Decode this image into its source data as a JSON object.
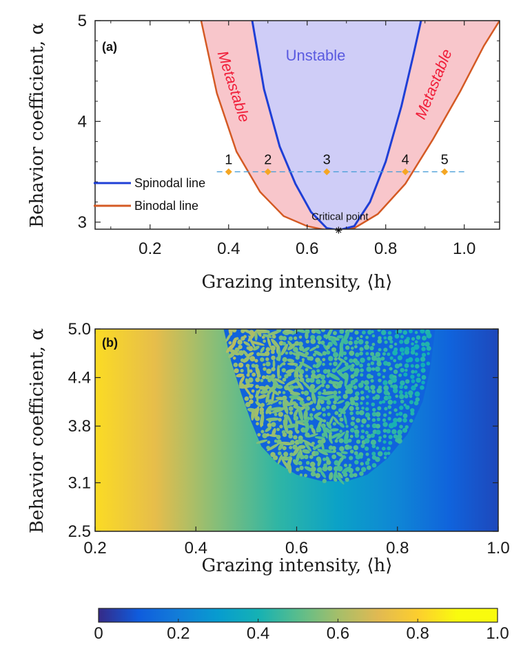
{
  "chart_data": [
    {
      "panel": "(a)",
      "type": "line",
      "xlabel": "Grazing intensity, ⟨h⟩",
      "ylabel": "Behavior coefficient, α",
      "xlim": [
        0.06,
        1.09
      ],
      "ylim": [
        2.93,
        5.0
      ],
      "xticks": [
        0.2,
        0.4,
        0.6,
        0.8,
        1.0
      ],
      "xtick_labels": [
        "0.2",
        "0.4",
        "0.6",
        "0.8",
        "1.0"
      ],
      "yticks": [
        3,
        4,
        5
      ],
      "ytick_labels": [
        "3",
        "4",
        "5"
      ],
      "critical_point": {
        "x": 0.68,
        "y": 2.92,
        "label": "Critical point"
      },
      "series": [
        {
          "name": "Spinodal line",
          "color": "#1f3fd6",
          "x": [
            0.46,
            0.49,
            0.53,
            0.57,
            0.61,
            0.65,
            0.68,
            0.72,
            0.76,
            0.8,
            0.84,
            0.87,
            0.89
          ],
          "y": [
            5.0,
            4.32,
            3.75,
            3.38,
            3.1,
            2.94,
            2.92,
            2.96,
            3.2,
            3.6,
            4.15,
            4.65,
            5.0
          ]
        },
        {
          "name": "Binodal line",
          "color": "#d45a24",
          "x": [
            0.33,
            0.37,
            0.42,
            0.48,
            0.54,
            0.6,
            0.65,
            0.68,
            0.72,
            0.78,
            0.85,
            0.92,
            0.99,
            1.05,
            1.09
          ],
          "y": [
            5.0,
            4.28,
            3.7,
            3.3,
            3.06,
            2.96,
            2.92,
            2.92,
            2.94,
            3.08,
            3.38,
            3.82,
            4.3,
            4.75,
            5.0
          ]
        }
      ],
      "sample_points": {
        "alpha": 3.5,
        "x": [
          0.4,
          0.5,
          0.65,
          0.85,
          0.95
        ],
        "labels": [
          "1",
          "2",
          "3",
          "4",
          "5"
        ],
        "color": "#f5a623"
      },
      "regions": {
        "unstable_label": "Unstable",
        "metastable_label": "Metastable",
        "unstable_color": "#cfcdf7",
        "metastable_color": "#f8c6cb",
        "unstable_text_color": "#5a5ae0",
        "metastable_text_color": "#f01f3a"
      },
      "legend": "bottom-left",
      "grid": false
    },
    {
      "panel": "(b)",
      "type": "heatmap",
      "xlabel": "Grazing intensity, ⟨h⟩",
      "ylabel": "Behavior coefficient, α",
      "xlim": [
        0.2,
        1.0
      ],
      "ylim": [
        2.5,
        5.0
      ],
      "xticks": [
        0.2,
        0.4,
        0.6,
        0.8,
        1.0
      ],
      "xtick_labels": [
        "0.2",
        "0.4",
        "0.6",
        "0.8",
        "1.0"
      ],
      "yticks": [
        2.5,
        3.1,
        3.8,
        4.4,
        5.0
      ],
      "ytick_labels": [
        "2.5",
        "3.1",
        "3.8",
        "4.4",
        "5.0"
      ],
      "colorbar": {
        "range": [
          0,
          1
        ],
        "ticks": [
          0,
          0.2,
          0.4,
          0.6,
          0.8,
          1.0
        ],
        "tick_labels": [
          "0",
          "0.2",
          "0.4",
          "0.6",
          "0.8",
          "1.0"
        ],
        "colormap": "parula"
      }
    }
  ]
}
